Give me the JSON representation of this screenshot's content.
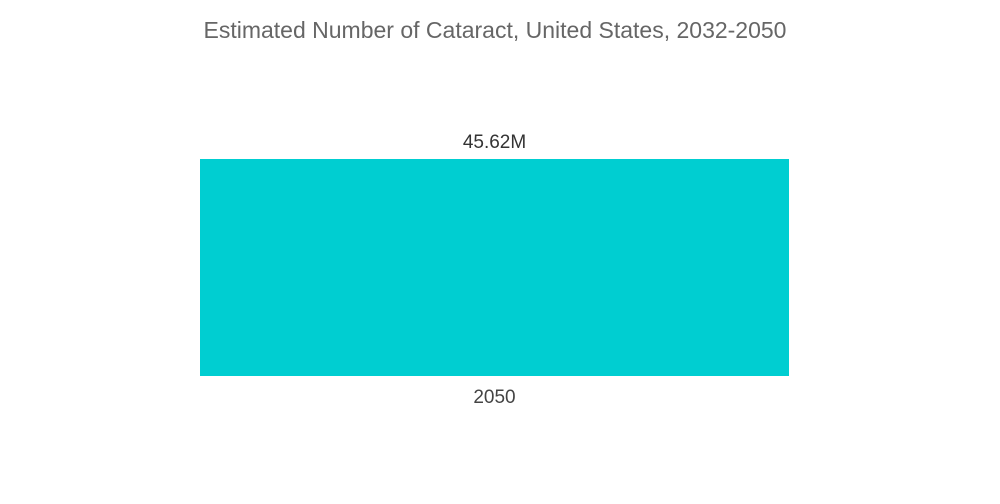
{
  "chart_data": {
    "type": "bar",
    "title": "Estimated Number of Cataract, United States, 2032-2050",
    "categories": [
      "2050"
    ],
    "values": [
      45.62
    ],
    "value_labels": [
      "45.62M"
    ],
    "unit": "M",
    "xlabel": "",
    "ylabel": "",
    "ylim": [
      0,
      45.62
    ],
    "grid": false,
    "legend": "none",
    "colors": {
      "bar": "#00ced1",
      "title": "#666666",
      "labels": "#333333"
    }
  }
}
